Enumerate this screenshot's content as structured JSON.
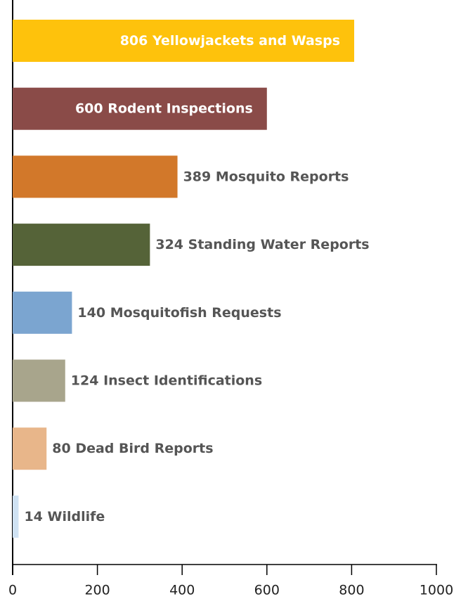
{
  "chart_data": {
    "type": "hbar",
    "categories": [
      "Yellowjackets and Wasps",
      "Rodent Inspections",
      "Mosquito Reports",
      "Standing Water Reports",
      "Mosquitofish Requests",
      "Insect Identifications",
      "Dead Bird Reports",
      "Wildlife"
    ],
    "values": [
      806,
      600,
      389,
      324,
      140,
      124,
      80,
      14
    ],
    "colors": [
      "#fec20c",
      "#8a4b48",
      "#d2782a",
      "#556338",
      "#7ba5d0",
      "#a8a58c",
      "#e8b68a",
      "#cfe2f3"
    ],
    "xlim": [
      0,
      1000
    ],
    "xticks": [
      0,
      200,
      400,
      600,
      800,
      1000
    ]
  }
}
